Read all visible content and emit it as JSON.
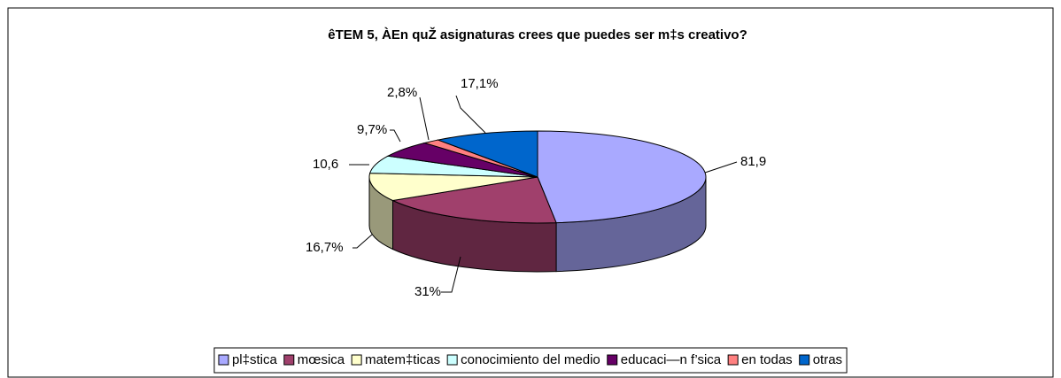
{
  "chart_data": {
    "type": "pie",
    "title": "êTEM 5, ÀEn quŽ asignaturas crees que puedes ser m‡s creativo?",
    "categories": [
      "pl‡stica",
      "mœsica",
      "matem‡ticas",
      "conocimiento del medio",
      "educaci—n f’sica",
      "en todas",
      "otras"
    ],
    "values": [
      81.9,
      31,
      16.7,
      10.6,
      9.7,
      2.8,
      17.1
    ],
    "value_labels": [
      "81,9",
      "31%",
      "16,7%",
      "10,6",
      "9,7%",
      "2,8%",
      "17,1%"
    ],
    "colors": [
      "#a9a9ff",
      "#a0406c",
      "#ffffcc",
      "#ccffff",
      "#660066",
      "#ff8080",
      "#0066cc"
    ],
    "legend": "bottom"
  }
}
